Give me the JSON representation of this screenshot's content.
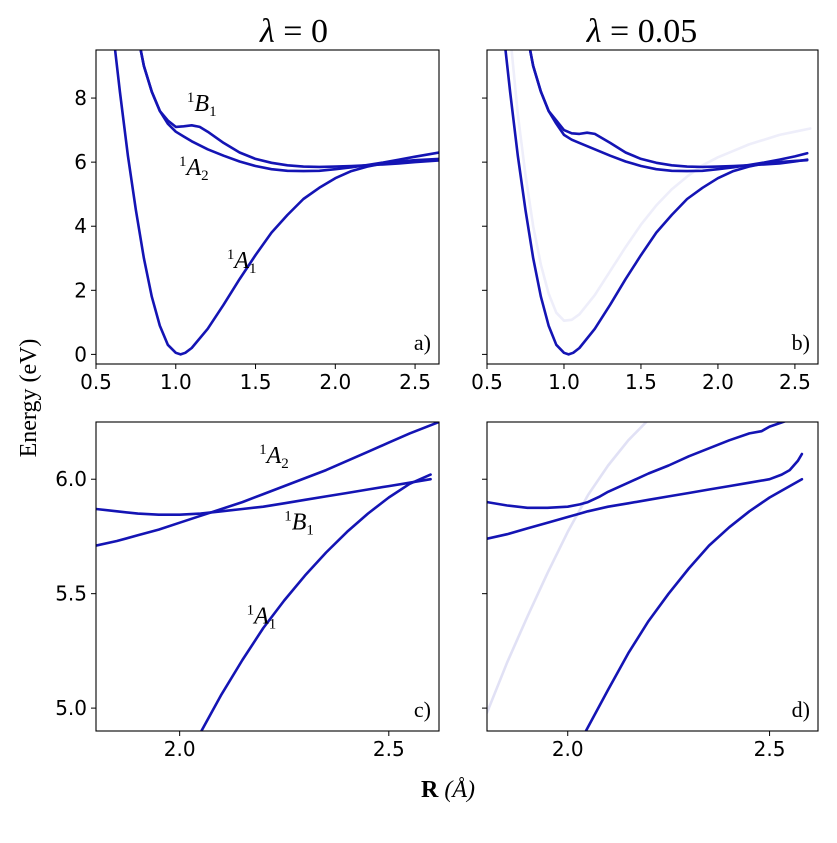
{
  "figure": {
    "col_titles": [
      {
        "symbol": "λ",
        "rest": " = 0"
      },
      {
        "symbol": "λ",
        "rest": " = 0.05"
      }
    ],
    "ylabel": "Energy (eV)",
    "xlabel_bold": "R",
    "xlabel_unit": " (Å)"
  },
  "chart_data": [
    {
      "type": "line",
      "panel_label": "a)",
      "xlim": [
        0.5,
        2.65
      ],
      "ylim": [
        -0.3,
        9.5
      ],
      "xticks": [
        0.5,
        1.0,
        1.5,
        2.0,
        2.5
      ],
      "xtick_labels": [
        "0.5",
        "1.0",
        "1.5",
        "2.0",
        "2.5"
      ],
      "yticks": [
        0,
        2,
        4,
        6,
        8
      ],
      "ytick_labels": [
        "0",
        "2",
        "4",
        "6",
        "8"
      ],
      "series": [
        {
          "name": "1A1",
          "color": "#1414b4",
          "opacity": 1,
          "x": [
            0.62,
            0.65,
            0.7,
            0.75,
            0.8,
            0.85,
            0.9,
            0.95,
            1.0,
            1.03,
            1.06,
            1.1,
            1.2,
            1.3,
            1.4,
            1.5,
            1.6,
            1.7,
            1.8,
            1.9,
            2.0,
            2.1,
            2.2,
            2.3,
            2.4,
            2.5,
            2.65
          ],
          "y": [
            9.5,
            8.2,
            6.2,
            4.5,
            3.0,
            1.8,
            0.9,
            0.3,
            0.05,
            0.0,
            0.05,
            0.2,
            0.8,
            1.55,
            2.35,
            3.1,
            3.8,
            4.35,
            4.85,
            5.2,
            5.5,
            5.72,
            5.86,
            5.96,
            6.02,
            6.06,
            6.1
          ]
        },
        {
          "name": "1B1",
          "color": "#1414b4",
          "opacity": 1,
          "x": [
            0.78,
            0.8,
            0.85,
            0.9,
            0.95,
            1.0,
            1.05,
            1.1,
            1.15,
            1.2,
            1.3,
            1.4,
            1.5,
            1.6,
            1.7,
            1.8,
            1.9,
            2.0,
            2.1,
            2.2,
            2.3,
            2.4,
            2.5,
            2.65
          ],
          "y": [
            9.5,
            9.0,
            8.2,
            7.6,
            7.3,
            7.1,
            7.12,
            7.15,
            7.1,
            6.95,
            6.6,
            6.3,
            6.1,
            5.98,
            5.9,
            5.86,
            5.85,
            5.86,
            5.88,
            5.9,
            5.93,
            5.96,
            6.0,
            6.05
          ]
        },
        {
          "name": "1A2",
          "color": "#1414b4",
          "opacity": 1,
          "x": [
            0.78,
            0.8,
            0.85,
            0.9,
            0.95,
            1.0,
            1.05,
            1.1,
            1.2,
            1.3,
            1.4,
            1.5,
            1.6,
            1.7,
            1.8,
            1.9,
            2.0,
            2.1,
            2.2,
            2.3,
            2.4,
            2.5,
            2.65
          ],
          "y": [
            9.5,
            9.0,
            8.2,
            7.6,
            7.2,
            6.95,
            6.8,
            6.65,
            6.4,
            6.2,
            6.02,
            5.88,
            5.78,
            5.73,
            5.72,
            5.73,
            5.78,
            5.84,
            5.91,
            5.99,
            6.08,
            6.17,
            6.3
          ]
        }
      ],
      "labels": [
        {
          "sup": "1",
          "base": "B",
          "sub": "1",
          "x": 1.07,
          "y": 7.6
        },
        {
          "sup": "1",
          "base": "A",
          "sub": "2",
          "x": 1.02,
          "y": 5.6
        },
        {
          "sup": "1",
          "base": "A",
          "sub": "1",
          "x": 1.32,
          "y": 2.7
        }
      ]
    },
    {
      "type": "line",
      "panel_label": "b)",
      "xlim": [
        0.5,
        2.65
      ],
      "ylim": [
        -0.3,
        9.5
      ],
      "xticks": [
        0.5,
        1.0,
        1.5,
        2.0,
        2.5
      ],
      "xtick_labels": [
        "0.5",
        "1.0",
        "1.5",
        "2.0",
        "2.5"
      ],
      "yticks": [
        0,
        2,
        4,
        6,
        8
      ],
      "ytick_labels": [],
      "series": [
        {
          "name": "faint",
          "color": "#1414b4",
          "opacity": 0.07,
          "x": [
            0.66,
            0.7,
            0.75,
            0.8,
            0.85,
            0.9,
            0.95,
            1.0,
            1.05,
            1.1,
            1.2,
            1.3,
            1.4,
            1.5,
            1.6,
            1.7,
            1.8,
            1.9,
            2.0,
            2.1,
            2.2,
            2.3,
            2.4,
            2.5,
            2.6
          ],
          "y": [
            9.5,
            7.5,
            5.6,
            4.0,
            2.8,
            1.9,
            1.3,
            1.05,
            1.08,
            1.25,
            1.85,
            2.6,
            3.35,
            4.05,
            4.65,
            5.15,
            5.55,
            5.9,
            6.15,
            6.35,
            6.55,
            6.7,
            6.85,
            6.95,
            7.05
          ]
        },
        {
          "name": "1A1",
          "color": "#1414b4",
          "opacity": 1,
          "x": [
            0.62,
            0.65,
            0.7,
            0.75,
            0.8,
            0.85,
            0.9,
            0.95,
            1.0,
            1.03,
            1.06,
            1.1,
            1.2,
            1.3,
            1.4,
            1.5,
            1.6,
            1.7,
            1.8,
            1.9,
            2.0,
            2.1,
            2.2,
            2.3,
            2.4,
            2.5,
            2.58
          ],
          "y": [
            9.5,
            8.2,
            6.2,
            4.5,
            3.0,
            1.8,
            0.9,
            0.3,
            0.05,
            0.0,
            0.05,
            0.2,
            0.8,
            1.55,
            2.35,
            3.1,
            3.8,
            4.35,
            4.85,
            5.2,
            5.5,
            5.72,
            5.86,
            5.96,
            6.0,
            6.04,
            6.06
          ]
        },
        {
          "name": "1B1",
          "color": "#1414b4",
          "opacity": 1,
          "x": [
            0.78,
            0.8,
            0.85,
            0.9,
            0.95,
            1.0,
            1.05,
            1.1,
            1.15,
            1.2,
            1.3,
            1.4,
            1.5,
            1.6,
            1.7,
            1.8,
            1.9,
            2.0,
            2.1,
            2.2,
            2.3,
            2.4,
            2.5,
            2.58
          ],
          "y": [
            9.5,
            9.0,
            8.2,
            7.6,
            7.3,
            7.0,
            6.9,
            6.88,
            6.92,
            6.88,
            6.6,
            6.3,
            6.1,
            5.98,
            5.9,
            5.86,
            5.85,
            5.86,
            5.88,
            5.9,
            5.93,
            5.96,
            6.02,
            6.08
          ]
        },
        {
          "name": "1A2",
          "color": "#1414b4",
          "opacity": 1,
          "x": [
            0.78,
            0.8,
            0.85,
            0.9,
            0.95,
            1.0,
            1.05,
            1.1,
            1.2,
            1.3,
            1.4,
            1.5,
            1.6,
            1.7,
            1.8,
            1.9,
            2.0,
            2.1,
            2.2,
            2.3,
            2.4,
            2.5,
            2.58
          ],
          "y": [
            9.5,
            9.0,
            8.2,
            7.6,
            7.2,
            6.85,
            6.7,
            6.6,
            6.4,
            6.2,
            6.02,
            5.88,
            5.78,
            5.73,
            5.72,
            5.73,
            5.78,
            5.84,
            5.91,
            5.99,
            6.08,
            6.18,
            6.28
          ]
        }
      ],
      "labels": []
    },
    {
      "type": "line",
      "panel_label": "c)",
      "xlim": [
        1.8,
        2.62
      ],
      "ylim": [
        4.9,
        6.25
      ],
      "xticks": [
        2.0,
        2.5
      ],
      "xtick_labels": [
        "2.0",
        "2.5"
      ],
      "yticks": [
        5.0,
        5.5,
        6.0
      ],
      "ytick_labels": [
        "5.0",
        "5.5",
        "6.0"
      ],
      "series": [
        {
          "name": "1A1",
          "color": "#1414b4",
          "opacity": 1,
          "x": [
            2.052,
            2.1,
            2.15,
            2.2,
            2.25,
            2.3,
            2.35,
            2.4,
            2.45,
            2.5,
            2.55,
            2.6
          ],
          "y": [
            4.9,
            5.06,
            5.21,
            5.35,
            5.47,
            5.58,
            5.68,
            5.77,
            5.85,
            5.92,
            5.98,
            6.02
          ]
        },
        {
          "name": "1B1",
          "color": "#1414b4",
          "opacity": 1,
          "x": [
            1.8,
            1.85,
            1.9,
            1.95,
            2.0,
            2.05,
            2.1,
            2.15,
            2.2,
            2.25,
            2.3,
            2.35,
            2.4,
            2.45,
            2.5,
            2.55,
            2.6
          ],
          "y": [
            5.87,
            5.86,
            5.85,
            5.845,
            5.845,
            5.85,
            5.86,
            5.87,
            5.88,
            5.895,
            5.91,
            5.925,
            5.94,
            5.955,
            5.97,
            5.985,
            6.0
          ]
        },
        {
          "name": "1A2",
          "color": "#1414b4",
          "opacity": 1,
          "x": [
            1.8,
            1.85,
            1.9,
            1.95,
            2.0,
            2.05,
            2.1,
            2.15,
            2.2,
            2.25,
            2.3,
            2.35,
            2.4,
            2.45,
            2.5,
            2.55,
            2.62
          ],
          "y": [
            5.71,
            5.73,
            5.755,
            5.78,
            5.81,
            5.84,
            5.87,
            5.9,
            5.935,
            5.97,
            6.005,
            6.04,
            6.08,
            6.12,
            6.16,
            6.2,
            6.25
          ]
        }
      ],
      "labels": [
        {
          "sup": "1",
          "base": "A",
          "sub": "2",
          "x": 2.19,
          "y": 6.07
        },
        {
          "sup": "1",
          "base": "B",
          "sub": "1",
          "x": 2.25,
          "y": 5.78
        },
        {
          "sup": "1",
          "base": "A",
          "sub": "1",
          "x": 2.16,
          "y": 5.37
        }
      ]
    },
    {
      "type": "line",
      "panel_label": "d)",
      "xlim": [
        1.8,
        2.62
      ],
      "ylim": [
        4.9,
        6.25
      ],
      "xticks": [
        2.0,
        2.5
      ],
      "xtick_labels": [
        "2.0",
        "2.5"
      ],
      "yticks": [
        5.0,
        5.5,
        6.0
      ],
      "ytick_labels": [],
      "series": [
        {
          "name": "faint",
          "color": "#1414b4",
          "opacity": 0.13,
          "x": [
            1.8,
            1.85,
            1.9,
            1.95,
            2.0,
            2.05,
            2.1,
            2.15,
            2.2
          ],
          "y": [
            4.98,
            5.2,
            5.4,
            5.59,
            5.77,
            5.93,
            6.06,
            6.17,
            6.26
          ]
        },
        {
          "name": "1A1",
          "color": "#1414b4",
          "opacity": 1,
          "x": [
            2.045,
            2.1,
            2.15,
            2.2,
            2.25,
            2.3,
            2.35,
            2.4,
            2.45,
            2.5,
            2.55,
            2.58
          ],
          "y": [
            4.9,
            5.08,
            5.24,
            5.38,
            5.5,
            5.61,
            5.71,
            5.79,
            5.86,
            5.92,
            5.97,
            6.0
          ]
        },
        {
          "name": "upper-1",
          "color": "#1414b4",
          "opacity": 1,
          "x": [
            1.8,
            1.85,
            1.9,
            1.95,
            2.0,
            2.03,
            2.05,
            2.08,
            2.1,
            2.15,
            2.2,
            2.25,
            2.3,
            2.35,
            2.4,
            2.45,
            2.48,
            2.5,
            2.55,
            2.58
          ],
          "y": [
            5.9,
            5.885,
            5.875,
            5.875,
            5.88,
            5.89,
            5.9,
            5.925,
            5.945,
            5.985,
            6.025,
            6.06,
            6.1,
            6.135,
            6.17,
            6.2,
            6.21,
            6.23,
            6.26,
            6.28
          ]
        },
        {
          "name": "upper-2",
          "color": "#1414b4",
          "opacity": 1,
          "x": [
            1.8,
            1.85,
            1.9,
            1.95,
            2.0,
            2.03,
            2.05,
            2.1,
            2.15,
            2.2,
            2.25,
            2.3,
            2.35,
            2.4,
            2.45,
            2.5,
            2.53,
            2.55,
            2.57,
            2.58
          ],
          "y": [
            5.74,
            5.76,
            5.785,
            5.81,
            5.835,
            5.85,
            5.86,
            5.88,
            5.895,
            5.91,
            5.925,
            5.94,
            5.955,
            5.97,
            5.985,
            6.0,
            6.02,
            6.04,
            6.08,
            6.11
          ]
        }
      ],
      "labels": []
    }
  ]
}
